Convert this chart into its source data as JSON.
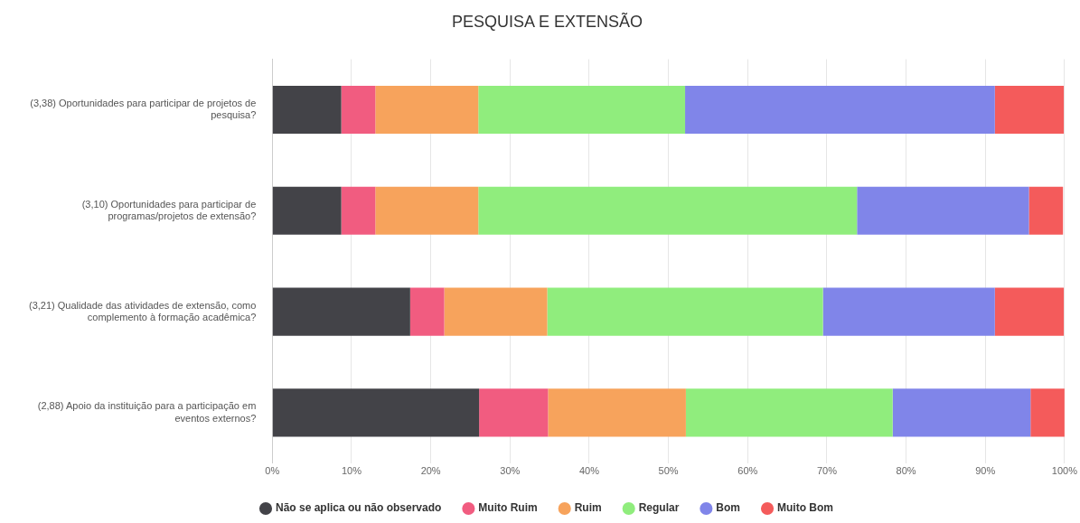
{
  "chart_data": {
    "type": "bar",
    "title": "PESQUISA E EXTENSÃO",
    "orientation": "horizontal",
    "stacked": true,
    "categories": [
      "(3,38) Oportunidades para participar de projetos de pesquisa?",
      "(3,10) Oportunidades para participar de programas/projetos de extensão?",
      "(3,21) Qualidade das atividades de extensão, como complemento à formação acadêmica?",
      "(2,88) Apoio da instituição para a participação em eventos externos?"
    ],
    "series": [
      {
        "name": "Não se aplica ou não observado",
        "color": "#434348",
        "values": [
          8.7,
          8.7,
          17.4,
          26.1
        ]
      },
      {
        "name": "Muito Ruim",
        "color": "#f15c80",
        "values": [
          4.3,
          4.3,
          4.3,
          8.7
        ]
      },
      {
        "name": "Ruim",
        "color": "#f7a35c",
        "values": [
          13.0,
          13.0,
          13.0,
          17.4
        ]
      },
      {
        "name": "Regular",
        "color": "#90ed7d",
        "values": [
          26.1,
          47.8,
          34.8,
          26.1
        ]
      },
      {
        "name": "Bom",
        "color": "#8085e9",
        "values": [
          39.1,
          21.7,
          21.7,
          17.4
        ]
      },
      {
        "name": "Muito Bom",
        "color": "#f45b5b",
        "values": [
          8.7,
          4.3,
          8.7,
          4.3
        ]
      }
    ],
    "xlim": [
      0,
      100
    ],
    "xticks": [
      {
        "value": 0,
        "label": "0%"
      },
      {
        "value": 10,
        "label": "10%"
      },
      {
        "value": 20,
        "label": "20%"
      },
      {
        "value": 30,
        "label": "30%"
      },
      {
        "value": 40,
        "label": "40%"
      },
      {
        "value": 50,
        "label": "50%"
      },
      {
        "value": 60,
        "label": "60%"
      },
      {
        "value": 70,
        "label": "70%"
      },
      {
        "value": 80,
        "label": "80%"
      },
      {
        "value": 90,
        "label": "90%"
      },
      {
        "value": 100,
        "label": "100%"
      }
    ],
    "grid": "x",
    "legend": "bottom"
  }
}
